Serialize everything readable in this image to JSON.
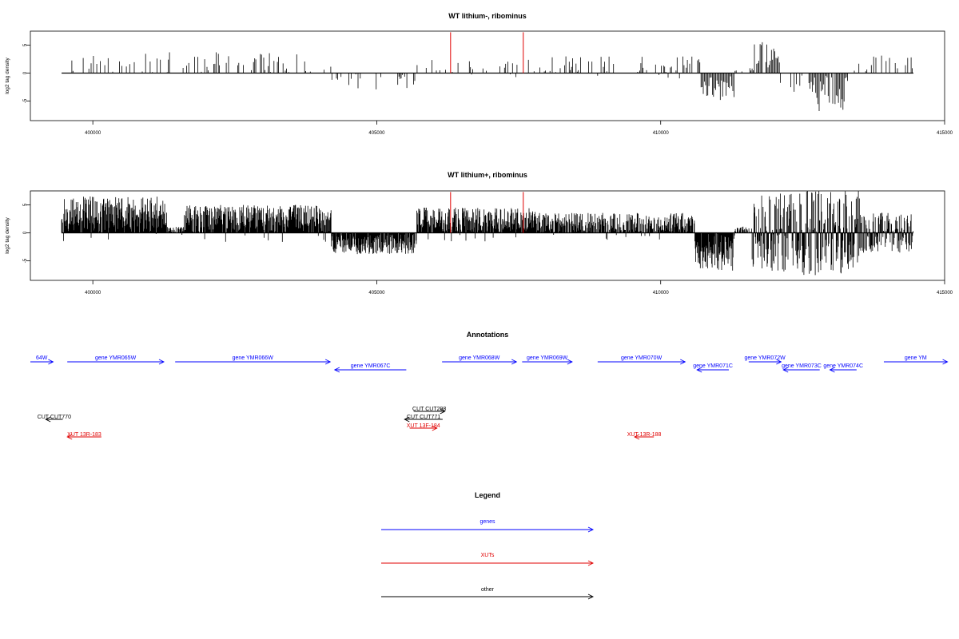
{
  "chart_data": {
    "type": "bar",
    "x_domain": [
      398900,
      415000
    ],
    "xticks": [
      400000,
      405000,
      410000,
      415000
    ],
    "xtick_labels": [
      "400000",
      "405000",
      "410000",
      "415000"
    ],
    "panels": [
      {
        "id": "lithium_minus",
        "title": "WT lithium-, ribominus",
        "ylabel": "log2 tag density",
        "ylim": [
          -8.5,
          7.5
        ],
        "yticks": [
          -5,
          0,
          5
        ],
        "ytick_labels": [
          "-5",
          "0",
          "5"
        ],
        "baseline_x": [
          399450,
          414450
        ],
        "highlight_color": "#e00000",
        "highlights": [
          {
            "x": 406300,
            "y": 7.3
          },
          {
            "x": 407580,
            "y": 7.3
          }
        ],
        "fill": {
          "x0": 399450,
          "x1": 414450,
          "step": 20,
          "seed": 11,
          "gap_zero": 0.66,
          "segments": [
            {
              "start": 399450,
              "end": 404200,
              "mode": "pos",
              "max": 3.8
            },
            {
              "start": 404200,
              "end": 405700,
              "mode": "neg",
              "max": 3.2
            },
            {
              "start": 405700,
              "end": 407300,
              "mode": "pos",
              "max": 2.5
            },
            {
              "start": 407300,
              "end": 410700,
              "mode": "pos",
              "max": 3.0
            },
            {
              "start": 410700,
              "end": 411300,
              "mode": "negdense",
              "max": 4.8
            },
            {
              "start": 411300,
              "end": 411600,
              "mode": "pos",
              "max": 1.2
            },
            {
              "start": 411600,
              "end": 412200,
              "mode": "posdense",
              "max": 5.6
            },
            {
              "start": 412200,
              "end": 412600,
              "mode": "neg",
              "max": 3.6
            },
            {
              "start": 412600,
              "end": 413300,
              "mode": "negdense",
              "max": 7.0
            },
            {
              "start": 413300,
              "end": 414450,
              "mode": "pos",
              "max": 3.3
            }
          ]
        }
      },
      {
        "id": "lithium_plus",
        "title": "WT lithium+, ribominus",
        "ylabel": "log2 tag density",
        "ylim": [
          -8.5,
          7.5
        ],
        "yticks": [
          -5,
          0,
          5
        ],
        "ytick_labels": [
          "-5",
          "0",
          "5"
        ],
        "baseline_x": [
          399450,
          414450
        ],
        "highlight_color": "#e00000",
        "highlights": [
          {
            "x": 406300,
            "y": 7.3
          },
          {
            "x": 407580,
            "y": 7.3
          }
        ],
        "fill": {
          "x0": 399450,
          "x1": 414450,
          "step": 8,
          "seed": 29,
          "gap_zero": 0.12,
          "segments": [
            {
              "start": 399450,
              "end": 401300,
              "mode": "posdense",
              "max": 6.5
            },
            {
              "start": 401300,
              "end": 401600,
              "mode": "pos",
              "max": 1.2
            },
            {
              "start": 401600,
              "end": 404200,
              "mode": "posdense",
              "max": 5.0
            },
            {
              "start": 404200,
              "end": 405700,
              "mode": "negdense",
              "max": 3.8
            },
            {
              "start": 405700,
              "end": 407800,
              "mode": "posdense",
              "max": 4.5
            },
            {
              "start": 407800,
              "end": 410600,
              "mode": "pos",
              "max": 3.6
            },
            {
              "start": 410600,
              "end": 411300,
              "mode": "negdense",
              "max": 6.8
            },
            {
              "start": 411300,
              "end": 411600,
              "mode": "pos",
              "max": 1.2
            },
            {
              "start": 411600,
              "end": 412300,
              "mode": "mixdense",
              "max": 7.2
            },
            {
              "start": 412300,
              "end": 413500,
              "mode": "mixdense",
              "max": 7.6
            },
            {
              "start": 413500,
              "end": 414450,
              "mode": "mixdense",
              "max": 3.6
            }
          ]
        }
      }
    ]
  },
  "annotations": {
    "title": "Annotations",
    "features": [
      {
        "label": "64W",
        "x0": 398900,
        "x1": 399300,
        "row": 0,
        "strand": "+",
        "kind": "gene"
      },
      {
        "label": "gene YMR065W",
        "x0": 399550,
        "x1": 401250,
        "row": 0,
        "strand": "+",
        "kind": "gene"
      },
      {
        "label": "gene YMR066W",
        "x0": 401450,
        "x1": 404180,
        "row": 0,
        "strand": "+",
        "kind": "gene"
      },
      {
        "label": "gene YMR067C",
        "x0": 404260,
        "x1": 405520,
        "row": 1,
        "strand": "-",
        "kind": "gene"
      },
      {
        "label": "gene YMR068W",
        "x0": 406150,
        "x1": 407460,
        "row": 0,
        "strand": "+",
        "kind": "gene"
      },
      {
        "label": "gene YMR069W",
        "x0": 407560,
        "x1": 408440,
        "row": 0,
        "strand": "+",
        "kind": "gene"
      },
      {
        "label": "gene YMR070W",
        "x0": 408890,
        "x1": 410430,
        "row": 0,
        "strand": "+",
        "kind": "gene"
      },
      {
        "label": "gene YMR071C",
        "x0": 410640,
        "x1": 411200,
        "row": 1,
        "strand": "-",
        "kind": "gene"
      },
      {
        "label": "gene YMR072W",
        "x0": 411550,
        "x1": 412120,
        "row": 0,
        "strand": "+",
        "kind": "gene"
      },
      {
        "label": "gene YMR073C",
        "x0": 412160,
        "x1": 412800,
        "row": 1,
        "strand": "-",
        "kind": "gene"
      },
      {
        "label": "gene YMR074C",
        "x0": 412980,
        "x1": 413450,
        "row": 1,
        "strand": "-",
        "kind": "gene"
      },
      {
        "label": "gene YM",
        "x0": 413930,
        "x1": 415050,
        "row": 0,
        "strand": "+",
        "kind": "gene"
      },
      {
        "label": "CUT CUT770",
        "x0": 399170,
        "x1": 399470,
        "row": 3,
        "strand": "-",
        "kind": "other"
      },
      {
        "label": "CUT CUT298",
        "x0": 405650,
        "x1": 406200,
        "row": 2,
        "strand": "+",
        "kind": "other"
      },
      {
        "label": "CUT CUT771",
        "x0": 405490,
        "x1": 406160,
        "row": 3,
        "strand": "-",
        "kind": "other"
      },
      {
        "label": "XUT 13F-184",
        "x0": 405580,
        "x1": 406060,
        "row": 4,
        "strand": "+",
        "kind": "xut"
      },
      {
        "label": "XUT 13R-183",
        "x0": 399550,
        "x1": 400150,
        "row": 5,
        "strand": "-",
        "kind": "xut"
      },
      {
        "label": "XUT 13R-188",
        "x0": 409540,
        "x1": 409880,
        "row": 5,
        "strand": "-",
        "kind": "xut"
      }
    ]
  },
  "legend": {
    "title": "Legend",
    "items": [
      {
        "label": "genes",
        "color": "#0000ff"
      },
      {
        "label": "XUTs",
        "color": "#e00000"
      },
      {
        "label": "other",
        "color": "#000000"
      }
    ]
  },
  "colors": {
    "gene": "#0000ff",
    "xut": "#e00000",
    "other": "#000000",
    "bar": "#000000",
    "axis": "#000000"
  }
}
